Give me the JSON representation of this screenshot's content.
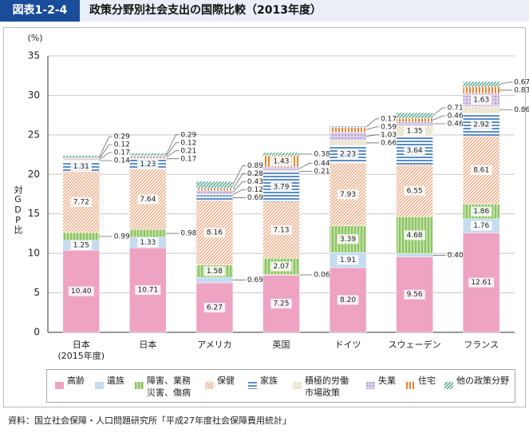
{
  "chart_data": {
    "type": "stacked_bar",
    "figure_label": "図表1-2-4",
    "title": "政策分野別社会支出の国際比較（2013年度）",
    "y_unit": "(%)",
    "y_label": "対GDP比",
    "source": "資料：国立社会保障・人口問題研究所「平成27年度社会保障費用統計」",
    "categories": [
      "日本\n(2015年度)",
      "日本",
      "アメリカ",
      "英国",
      "ドイツ",
      "スウェーデン",
      "フランス"
    ],
    "ylim": [
      0,
      35
    ],
    "yticks": [
      0,
      5,
      10,
      15,
      20,
      25,
      30,
      35
    ],
    "grid": true,
    "series": [
      {
        "name": "高齢",
        "color": "#eea3c3",
        "values": [
          10.4,
          10.71,
          6.27,
          7.25,
          8.2,
          9.56,
          12.61
        ],
        "value_labels": [
          "10.40",
          "10.71",
          "6.27",
          "7.25",
          "8.20",
          "9.56",
          "12.61"
        ]
      },
      {
        "name": "遺族",
        "color": "#c5dbf1",
        "values": [
          1.25,
          1.33,
          0.69,
          0.06,
          1.91,
          0.4,
          1.76
        ],
        "value_labels": [
          "1.25",
          "1.33",
          "0.69",
          "0.06",
          "1.91",
          "0.40",
          "1.76"
        ]
      },
      {
        "name": "障害、業務\n災害、傷病",
        "color": "#8cc461",
        "values": [
          0.99,
          0.98,
          1.58,
          2.07,
          3.39,
          4.68,
          1.86
        ],
        "value_labels": [
          "0.99",
          "0.98",
          "1.58",
          "2.07",
          "3.39",
          "4.68",
          "1.86"
        ]
      },
      {
        "name": "保健",
        "color": "#f2a177",
        "values": [
          7.72,
          7.64,
          8.16,
          7.13,
          7.93,
          6.55,
          8.61
        ],
        "value_labels": [
          "7.72",
          "7.64",
          "8.16",
          "7.13",
          "7.93",
          "6.55",
          "8.61"
        ]
      },
      {
        "name": "家族",
        "color": "#5a8ecb",
        "values": [
          1.31,
          1.23,
          0.69,
          3.79,
          2.23,
          3.64,
          2.92
        ],
        "value_labels": [
          "1.31",
          "1.23",
          "0.69",
          "3.79",
          "2.23",
          "3.64",
          "2.92"
        ]
      },
      {
        "name": "積極的労働\n市場政策",
        "color": "#d8cd9e",
        "values": [
          0.14,
          0.17,
          0.12,
          0.21,
          0.66,
          1.35,
          0.86
        ],
        "value_labels": [
          "0.14",
          "0.17",
          "0.12",
          "0.21",
          "0.66",
          "1.35",
          "0.86"
        ]
      },
      {
        "name": "失業",
        "color": "#9a78c2",
        "values": [
          0.17,
          0.21,
          0.43,
          0.44,
          1.03,
          0.46,
          1.63
        ],
        "value_labels": [
          "0.17",
          "0.21",
          "0.43",
          "0.44",
          "1.03",
          "0.46",
          "1.63"
        ]
      },
      {
        "name": "住宅",
        "color": "#f07f2c",
        "values": [
          0.12,
          0.12,
          0.28,
          1.43,
          0.59,
          0.46,
          0.83
        ],
        "value_labels": [
          "0.12",
          "0.12",
          "0.28",
          "1.43",
          "0.59",
          "0.46",
          "0.83"
        ]
      },
      {
        "name": "他の政策分野",
        "color": "#3d9a7f",
        "values": [
          0.29,
          0.29,
          0.89,
          0.38,
          0.17,
          0.71,
          0.67
        ],
        "value_labels": [
          "0.29",
          "0.29",
          "0.89",
          "0.38",
          "0.17",
          "0.71",
          "0.67"
        ]
      }
    ]
  }
}
